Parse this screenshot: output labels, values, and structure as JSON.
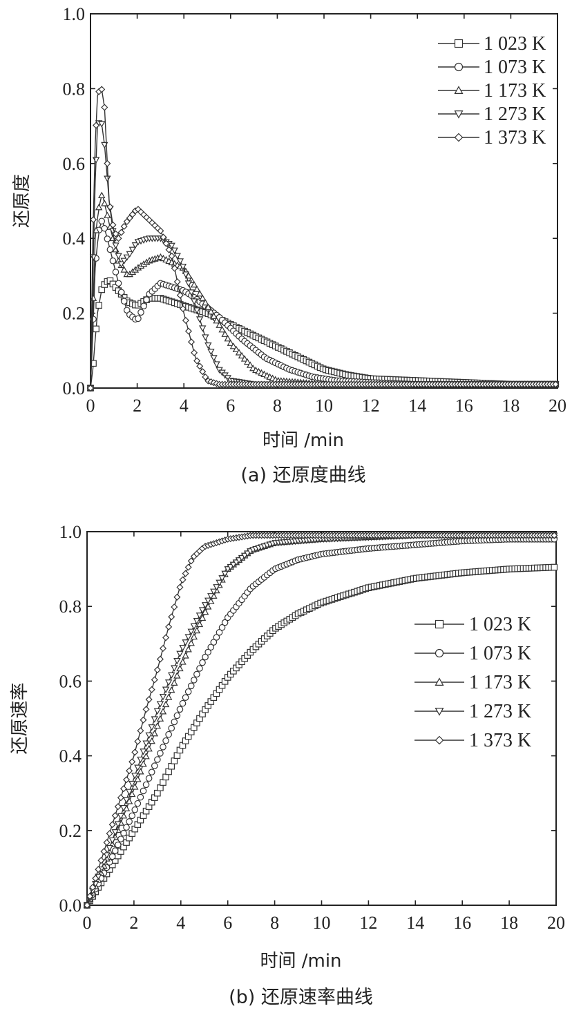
{
  "chart_data": [
    {
      "type": "line",
      "title": "",
      "caption": "(a) 还原度曲线",
      "xlabel": "时间 /min",
      "ylabel": "还原度",
      "xlim": [
        0,
        20
      ],
      "ylim": [
        0,
        1.0
      ],
      "xticks": [
        "0",
        "2",
        "4",
        "6",
        "8",
        "10",
        "12",
        "14",
        "16",
        "18",
        "20"
      ],
      "yticks": [
        "0.0",
        "0.2",
        "0.4",
        "0.6",
        "0.8",
        "1.0"
      ],
      "legend_position": "top-right",
      "series": [
        {
          "name": "1 023 K",
          "marker": "square",
          "x": [
            0,
            0.1,
            0.2,
            0.3,
            0.5,
            0.8,
            1.2,
            1.6,
            2.0,
            2.5,
            3.0,
            4.0,
            5.0,
            6.0,
            7.0,
            8.0,
            9.0,
            10.0,
            11.0,
            12.0,
            14.0,
            16.0,
            18.0,
            20.0
          ],
          "y": [
            0.0,
            0.05,
            0.13,
            0.2,
            0.27,
            0.29,
            0.26,
            0.23,
            0.22,
            0.24,
            0.24,
            0.22,
            0.2,
            0.17,
            0.14,
            0.11,
            0.08,
            0.05,
            0.035,
            0.025,
            0.02,
            0.015,
            0.01,
            0.01
          ]
        },
        {
          "name": "1 073 K",
          "marker": "circle",
          "x": [
            0,
            0.1,
            0.2,
            0.35,
            0.5,
            0.8,
            1.2,
            1.6,
            2.0,
            2.5,
            3.0,
            4.0,
            4.5,
            5.5,
            6.5,
            7.5,
            8.5,
            9.5,
            10.5,
            12.0,
            14.0,
            16.0,
            18.0,
            20.0
          ],
          "y": [
            0.0,
            0.15,
            0.32,
            0.42,
            0.45,
            0.38,
            0.28,
            0.2,
            0.18,
            0.25,
            0.28,
            0.26,
            0.24,
            0.19,
            0.13,
            0.08,
            0.05,
            0.03,
            0.02,
            0.015,
            0.01,
            0.01,
            0.01,
            0.01
          ]
        },
        {
          "name": "1 173 K",
          "marker": "triangle-up",
          "x": [
            0,
            0.1,
            0.2,
            0.35,
            0.5,
            0.8,
            1.2,
            1.6,
            2.0,
            2.5,
            3.0,
            4.0,
            5.0,
            6.0,
            7.0,
            8.0,
            9.0,
            10.0,
            12.0,
            14.0,
            16.0,
            18.0,
            20.0
          ],
          "y": [
            0.0,
            0.2,
            0.4,
            0.48,
            0.52,
            0.44,
            0.34,
            0.3,
            0.32,
            0.34,
            0.35,
            0.32,
            0.22,
            0.12,
            0.05,
            0.02,
            0.015,
            0.01,
            0.01,
            0.01,
            0.01,
            0.01,
            0.01
          ]
        },
        {
          "name": "1 273 K",
          "marker": "triangle-down",
          "x": [
            0,
            0.1,
            0.2,
            0.3,
            0.45,
            0.6,
            0.8,
            1.0,
            1.3,
            1.7,
            2.0,
            2.5,
            3.0,
            3.5,
            4.0,
            4.5,
            5.0,
            5.5,
            6.0,
            6.5,
            7.0,
            8.0,
            10.0,
            12.0,
            14.0,
            16.0,
            18.0,
            20.0
          ],
          "y": [
            0.0,
            0.3,
            0.55,
            0.7,
            0.72,
            0.65,
            0.5,
            0.4,
            0.33,
            0.36,
            0.39,
            0.4,
            0.4,
            0.38,
            0.32,
            0.22,
            0.12,
            0.05,
            0.02,
            0.015,
            0.01,
            0.01,
            0.01,
            0.01,
            0.01,
            0.01,
            0.01,
            0.01
          ]
        },
        {
          "name": "1 373 K",
          "marker": "diamond",
          "x": [
            0,
            0.1,
            0.2,
            0.3,
            0.45,
            0.6,
            0.8,
            1.0,
            1.2,
            1.5,
            2.0,
            2.5,
            3.0,
            3.5,
            4.0,
            4.5,
            5.0,
            5.5,
            6.0,
            7.0,
            8.0,
            10.0,
            12.0,
            14.0,
            16.0,
            18.0,
            20.0
          ],
          "y": [
            0.0,
            0.4,
            0.65,
            0.78,
            0.81,
            0.75,
            0.5,
            0.42,
            0.4,
            0.44,
            0.48,
            0.45,
            0.42,
            0.35,
            0.2,
            0.08,
            0.02,
            0.01,
            0.01,
            0.01,
            0.01,
            0.01,
            0.01,
            0.01,
            0.01,
            0.01,
            0.01
          ]
        }
      ]
    },
    {
      "type": "line",
      "title": "",
      "caption": "(b) 还原速率曲线",
      "xlabel": "时间 /min",
      "ylabel": "还原速率",
      "xlim": [
        0,
        20
      ],
      "ylim": [
        0,
        1.0
      ],
      "xticks": [
        "0",
        "2",
        "4",
        "6",
        "8",
        "10",
        "12",
        "14",
        "16",
        "18",
        "20"
      ],
      "yticks": [
        "0.0",
        "0.2",
        "0.4",
        "0.6",
        "0.8",
        "1.0"
      ],
      "legend_position": "middle-right",
      "series": [
        {
          "name": "1 023 K",
          "marker": "square",
          "x": [
            0,
            0.5,
            1,
            2,
            3,
            4,
            5,
            6,
            7,
            8,
            9,
            10,
            12,
            14,
            16,
            18,
            20
          ],
          "y": [
            0.0,
            0.05,
            0.1,
            0.2,
            0.3,
            0.42,
            0.52,
            0.61,
            0.68,
            0.74,
            0.78,
            0.81,
            0.85,
            0.875,
            0.89,
            0.9,
            0.905
          ]
        },
        {
          "name": "1 073 K",
          "marker": "circle",
          "x": [
            0,
            0.5,
            1,
            2,
            3,
            4,
            5,
            6,
            7,
            8,
            9,
            10,
            12,
            14,
            16,
            18,
            20
          ],
          "y": [
            0.0,
            0.06,
            0.12,
            0.25,
            0.39,
            0.53,
            0.66,
            0.77,
            0.85,
            0.9,
            0.925,
            0.94,
            0.955,
            0.965,
            0.975,
            0.98,
            0.98
          ]
        },
        {
          "name": "1 173 K",
          "marker": "triangle-up",
          "x": [
            0,
            0.5,
            1,
            2,
            3,
            4,
            5,
            6,
            7,
            8,
            10,
            12,
            14,
            16,
            18,
            20
          ],
          "y": [
            0.0,
            0.07,
            0.15,
            0.31,
            0.48,
            0.64,
            0.78,
            0.9,
            0.95,
            0.97,
            0.98,
            0.985,
            0.99,
            0.99,
            0.99,
            0.99
          ]
        },
        {
          "name": "1 273 K",
          "marker": "triangle-down",
          "x": [
            0,
            0.5,
            1,
            2,
            3,
            4,
            5,
            6,
            7,
            8,
            10,
            12,
            14,
            16,
            18,
            20
          ],
          "y": [
            0.0,
            0.08,
            0.16,
            0.34,
            0.52,
            0.68,
            0.8,
            0.9,
            0.95,
            0.97,
            0.98,
            0.985,
            0.99,
            0.99,
            0.99,
            0.99
          ]
        },
        {
          "name": "1 373 K",
          "marker": "diamond",
          "x": [
            0,
            0.5,
            1,
            1.5,
            2,
            2.5,
            3,
            3.5,
            4,
            4.5,
            5,
            6,
            7,
            8,
            10,
            12,
            14,
            16,
            18,
            20
          ],
          "y": [
            0.0,
            0.1,
            0.2,
            0.3,
            0.4,
            0.52,
            0.63,
            0.75,
            0.86,
            0.93,
            0.96,
            0.98,
            0.99,
            0.99,
            0.99,
            0.99,
            0.99,
            0.99,
            0.99,
            0.99
          ]
        }
      ]
    }
  ]
}
